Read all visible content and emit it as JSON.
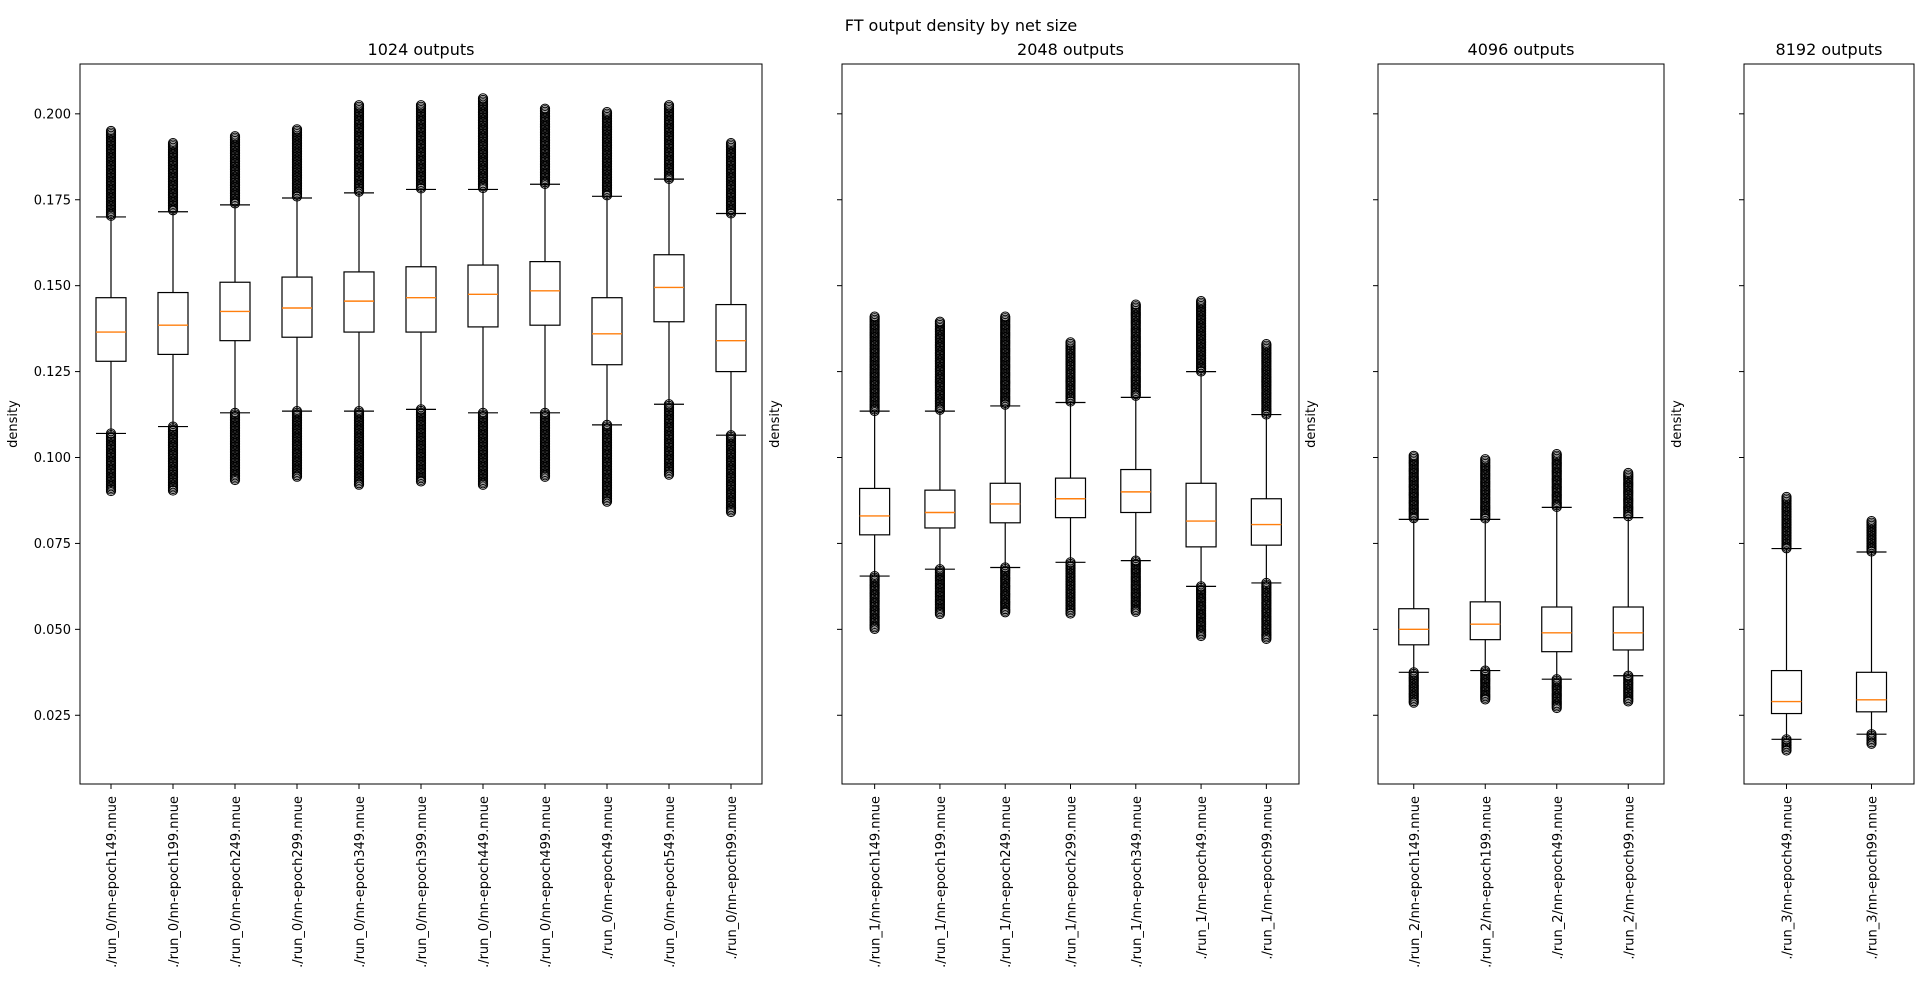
{
  "figure": {
    "suptitle": "FT output density by net size"
  },
  "chart_data": [
    {
      "type": "box",
      "title": "1024 outputs",
      "ylabel": "density",
      "ylim": [
        0.005,
        0.2145
      ],
      "yticks": [
        "0.025",
        "0.050",
        "0.075",
        "0.100",
        "0.125",
        "0.150",
        "0.175",
        "0.200"
      ],
      "categories": [
        "./run_0/nn-epoch149.nnue",
        "./run_0/nn-epoch199.nnue",
        "./run_0/nn-epoch249.nnue",
        "./run_0/nn-epoch299.nnue",
        "./run_0/nn-epoch349.nnue",
        "./run_0/nn-epoch399.nnue",
        "./run_0/nn-epoch449.nnue",
        "./run_0/nn-epoch499.nnue",
        "./run_0/nn-epoch49.nnue",
        "./run_0/nn-epoch549.nnue",
        "./run_0/nn-epoch99.nnue"
      ],
      "boxes": [
        {
          "whislo": 0.107,
          "q1": 0.128,
          "med": 0.1365,
          "q3": 0.1465,
          "whishi": 0.17,
          "fliers_low_min": 0.09,
          "fliers_high_max": 0.195
        },
        {
          "whislo": 0.109,
          "q1": 0.13,
          "med": 0.1385,
          "q3": 0.148,
          "whishi": 0.1715,
          "fliers_low_min": 0.09,
          "fliers_high_max": 0.1915
        },
        {
          "whislo": 0.113,
          "q1": 0.134,
          "med": 0.1425,
          "q3": 0.151,
          "whishi": 0.1735,
          "fliers_low_min": 0.093,
          "fliers_high_max": 0.1935
        },
        {
          "whislo": 0.1135,
          "q1": 0.135,
          "med": 0.1435,
          "q3": 0.1525,
          "whishi": 0.1755,
          "fliers_low_min": 0.094,
          "fliers_high_max": 0.1955
        },
        {
          "whislo": 0.1135,
          "q1": 0.1365,
          "med": 0.1455,
          "q3": 0.154,
          "whishi": 0.177,
          "fliers_low_min": 0.092,
          "fliers_high_max": 0.2025
        },
        {
          "whislo": 0.114,
          "q1": 0.1365,
          "med": 0.1465,
          "q3": 0.1555,
          "whishi": 0.178,
          "fliers_low_min": 0.093,
          "fliers_high_max": 0.2025
        },
        {
          "whislo": 0.113,
          "q1": 0.138,
          "med": 0.1475,
          "q3": 0.156,
          "whishi": 0.178,
          "fliers_low_min": 0.092,
          "fliers_high_max": 0.2045
        },
        {
          "whislo": 0.113,
          "q1": 0.1385,
          "med": 0.1485,
          "q3": 0.157,
          "whishi": 0.1795,
          "fliers_low_min": 0.094,
          "fliers_high_max": 0.2015
        },
        {
          "whislo": 0.1095,
          "q1": 0.127,
          "med": 0.136,
          "q3": 0.1465,
          "whishi": 0.176,
          "fliers_low_min": 0.087,
          "fliers_high_max": 0.2005
        },
        {
          "whislo": 0.1155,
          "q1": 0.1395,
          "med": 0.1495,
          "q3": 0.159,
          "whishi": 0.181,
          "fliers_low_min": 0.095,
          "fliers_high_max": 0.2025
        },
        {
          "whislo": 0.1065,
          "q1": 0.125,
          "med": 0.134,
          "q3": 0.1445,
          "whishi": 0.171,
          "fliers_low_min": 0.084,
          "fliers_high_max": 0.1915
        }
      ]
    },
    {
      "type": "box",
      "title": "2048 outputs",
      "ylabel": "density",
      "categories": [
        "./run_1/nn-epoch149.nnue",
        "./run_1/nn-epoch199.nnue",
        "./run_1/nn-epoch249.nnue",
        "./run_1/nn-epoch299.nnue",
        "./run_1/nn-epoch349.nnue",
        "./run_1/nn-epoch49.nnue",
        "./run_1/nn-epoch99.nnue"
      ],
      "boxes": [
        {
          "whislo": 0.0655,
          "q1": 0.0775,
          "med": 0.083,
          "q3": 0.091,
          "whishi": 0.1135,
          "fliers_low_min": 0.05,
          "fliers_high_max": 0.141
        },
        {
          "whislo": 0.0675,
          "q1": 0.0795,
          "med": 0.084,
          "q3": 0.0905,
          "whishi": 0.1135,
          "fliers_low_min": 0.054,
          "fliers_high_max": 0.1395
        },
        {
          "whislo": 0.068,
          "q1": 0.081,
          "med": 0.0865,
          "q3": 0.0925,
          "whishi": 0.115,
          "fliers_low_min": 0.0545,
          "fliers_high_max": 0.141
        },
        {
          "whislo": 0.0695,
          "q1": 0.0825,
          "med": 0.088,
          "q3": 0.094,
          "whishi": 0.116,
          "fliers_low_min": 0.0545,
          "fliers_high_max": 0.1335
        },
        {
          "whislo": 0.07,
          "q1": 0.084,
          "med": 0.09,
          "q3": 0.0965,
          "whishi": 0.1175,
          "fliers_low_min": 0.055,
          "fliers_high_max": 0.1445
        },
        {
          "whislo": 0.0625,
          "q1": 0.074,
          "med": 0.0815,
          "q3": 0.0925,
          "whishi": 0.125,
          "fliers_low_min": 0.048,
          "fliers_high_max": 0.1455
        },
        {
          "whislo": 0.0635,
          "q1": 0.0745,
          "med": 0.0805,
          "q3": 0.088,
          "whishi": 0.1125,
          "fliers_low_min": 0.047,
          "fliers_high_max": 0.133
        }
      ]
    },
    {
      "type": "box",
      "title": "4096 outputs",
      "ylabel": "density",
      "categories": [
        "./run_2/nn-epoch149.nnue",
        "./run_2/nn-epoch199.nnue",
        "./run_2/nn-epoch49.nnue",
        "./run_2/nn-epoch99.nnue"
      ],
      "boxes": [
        {
          "whislo": 0.0375,
          "q1": 0.0455,
          "med": 0.05,
          "q3": 0.056,
          "whishi": 0.082,
          "fliers_low_min": 0.0285,
          "fliers_high_max": 0.1005
        },
        {
          "whislo": 0.038,
          "q1": 0.047,
          "med": 0.0515,
          "q3": 0.058,
          "whishi": 0.082,
          "fliers_low_min": 0.0295,
          "fliers_high_max": 0.0995
        },
        {
          "whislo": 0.0355,
          "q1": 0.0435,
          "med": 0.049,
          "q3": 0.0565,
          "whishi": 0.0855,
          "fliers_low_min": 0.027,
          "fliers_high_max": 0.101
        },
        {
          "whislo": 0.0365,
          "q1": 0.044,
          "med": 0.049,
          "q3": 0.0565,
          "whishi": 0.0825,
          "fliers_low_min": 0.029,
          "fliers_high_max": 0.0955
        }
      ]
    },
    {
      "type": "box",
      "title": "8192 outputs",
      "ylabel": "density",
      "categories": [
        "./run_3/nn-epoch49.nnue",
        "./run_3/nn-epoch99.nnue"
      ],
      "boxes": [
        {
          "whislo": 0.018,
          "q1": 0.0255,
          "med": 0.029,
          "q3": 0.038,
          "whishi": 0.0735,
          "fliers_low_min": 0.0145,
          "fliers_high_max": 0.0885
        },
        {
          "whislo": 0.0195,
          "q1": 0.026,
          "med": 0.0295,
          "q3": 0.0375,
          "whishi": 0.0725,
          "fliers_low_min": 0.0165,
          "fliers_high_max": 0.0815
        }
      ]
    }
  ],
  "colors": {
    "median": "#ff7f0e",
    "box": "#000000",
    "background": "#ffffff"
  }
}
